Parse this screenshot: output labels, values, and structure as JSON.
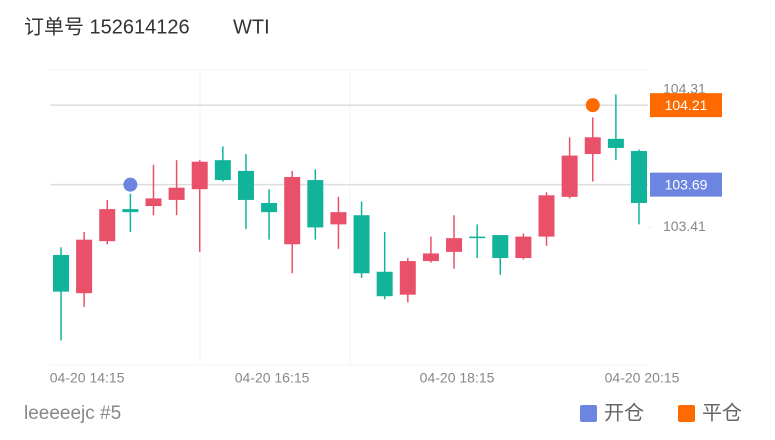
{
  "header": {
    "order": "订单号 152614126",
    "symbol": "WTI"
  },
  "footer": {
    "user": "leeeeejc #5"
  },
  "chart_data": {
    "type": "candlestick",
    "categories": [
      null,
      "04-20 14:15",
      null,
      null,
      null,
      null,
      null,
      null,
      null,
      "04-20 16:15",
      null,
      null,
      null,
      null,
      null,
      null,
      null,
      "04-20 18:15",
      null,
      null,
      null,
      null,
      null,
      null,
      null,
      "04-20 20:15"
    ],
    "open": [
      103.23,
      102.98,
      103.32,
      103.53,
      103.55,
      103.59,
      103.66,
      103.85,
      103.78,
      103.57,
      103.3,
      103.72,
      103.43,
      103.49,
      103.12,
      102.97,
      103.19,
      103.25,
      103.35,
      103.36,
      103.21,
      103.35,
      103.61,
      103.89,
      103.99,
      103.91
    ],
    "high": [
      103.28,
      103.38,
      103.59,
      103.63,
      103.82,
      103.85,
      103.85,
      103.94,
      103.89,
      103.66,
      103.78,
      103.79,
      103.61,
      103.58,
      103.38,
      103.21,
      103.35,
      103.49,
      103.43,
      103.36,
      103.37,
      103.64,
      104.0,
      104.13,
      104.28,
      103.92
    ],
    "low": [
      102.67,
      102.89,
      103.3,
      103.38,
      103.49,
      103.49,
      103.25,
      103.71,
      103.4,
      103.33,
      103.11,
      103.33,
      103.27,
      103.08,
      102.94,
      102.92,
      103.18,
      103.14,
      103.21,
      103.1,
      103.2,
      103.29,
      103.6,
      103.71,
      103.85,
      103.43
    ],
    "close": [
      102.99,
      103.33,
      103.53,
      103.51,
      103.6,
      103.67,
      103.84,
      103.72,
      103.59,
      103.51,
      103.74,
      103.41,
      103.51,
      103.11,
      102.96,
      103.19,
      103.24,
      103.34,
      103.34,
      103.21,
      103.35,
      103.62,
      103.88,
      104.0,
      103.93,
      103.57
    ],
    "up_color": "#e9516b",
    "down_color": "#12b39b",
    "ylim": [
      102.51,
      104.44
    ],
    "yticks": [
      104.31,
      103.41
    ],
    "markers": [
      {
        "name": "开仓",
        "color": "#6b85e0",
        "index": 3,
        "value": 103.69
      },
      {
        "name": "平仓",
        "color": "#ff6a00",
        "index": 23,
        "value": 104.21
      }
    ]
  }
}
